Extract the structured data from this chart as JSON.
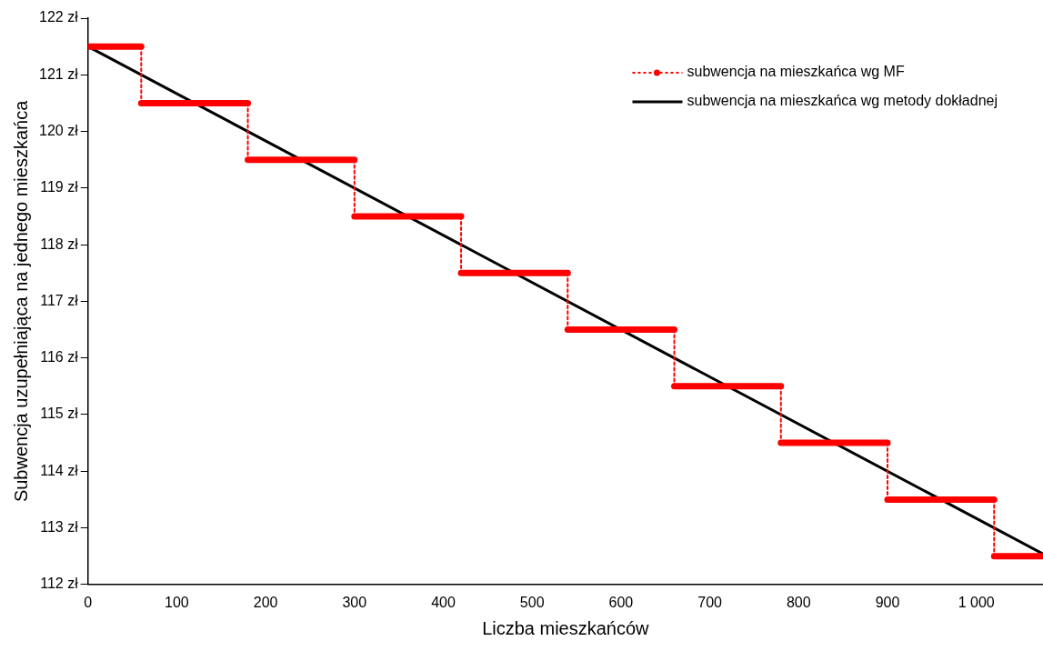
{
  "chart_data": {
    "type": "line",
    "xlabel": "Liczba mieszkańców",
    "ylabel": "Subwencja uzupełniająca na jednego mieszkańca",
    "xlim": [
      0,
      1075
    ],
    "xticks": [
      0,
      100,
      200,
      300,
      400,
      500,
      600,
      700,
      800,
      900,
      {
        "value": 1000,
        "label": "1 000"
      }
    ],
    "ylim": [
      112,
      122
    ],
    "yticks": [
      {
        "value": 112,
        "label": "112 zł"
      },
      {
        "value": 113,
        "label": "113 zł"
      },
      {
        "value": 114,
        "label": "114 zł"
      },
      {
        "value": 115,
        "label": "115 zł"
      },
      {
        "value": 116,
        "label": "116 zł"
      },
      {
        "value": 117,
        "label": "117 zł"
      },
      {
        "value": 118,
        "label": "118 zł"
      },
      {
        "value": 119,
        "label": "119 zł"
      },
      {
        "value": 120,
        "label": "120 zł"
      },
      {
        "value": 121,
        "label": "121 zł"
      },
      {
        "value": 122,
        "label": "122 zł"
      }
    ],
    "grid": false,
    "legend": "top right",
    "series": [
      {
        "name": "subwencja na mieszkańca wg MF",
        "color": "#ff0000",
        "line_style": "dotted",
        "x": [
          0,
          60,
          60,
          180,
          180,
          300,
          300,
          420,
          420,
          540,
          540,
          660,
          660,
          780,
          780,
          900,
          900,
          1020,
          1020,
          1075
        ],
        "values": [
          121.5,
          121.5,
          120.5,
          120.5,
          119.5,
          119.5,
          118.5,
          118.5,
          117.5,
          117.5,
          116.5,
          116.5,
          115.5,
          115.5,
          114.5,
          114.5,
          113.5,
          113.5,
          112.5,
          112.5
        ]
      },
      {
        "name": "subwencja na mieszkańca wg metody dokładnej",
        "color": "#000000",
        "line_style": "solid",
        "x": [
          0,
          1075
        ],
        "values": [
          121.5,
          112.54
        ]
      }
    ]
  }
}
